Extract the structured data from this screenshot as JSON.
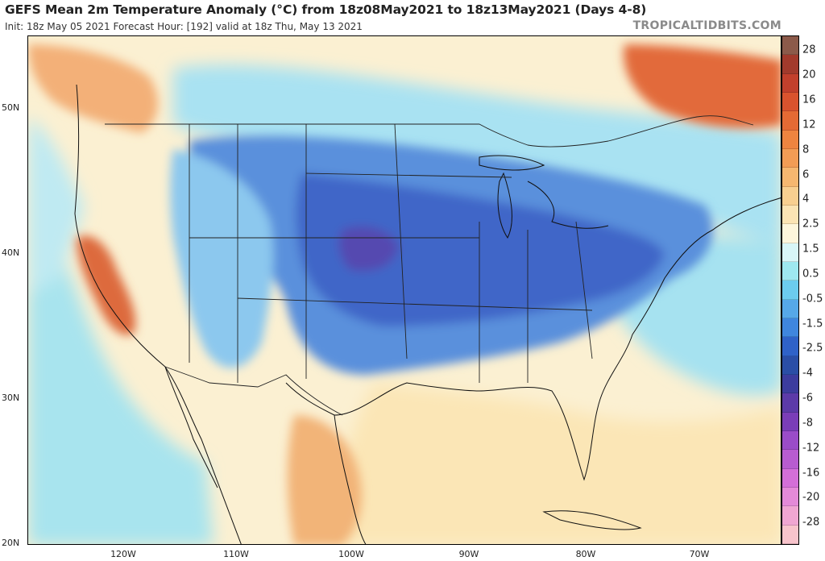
{
  "header": {
    "title": "GEFS Mean 2m Temperature Anomaly (°C) from 18z08May2021 to 18z13May2021 (Days 4-8)",
    "subtitle": "Init: 18z May 05 2021   Forecast Hour: [192]   valid at 18z Thu, May 13 2021",
    "brand": "TROPICALTIDBITS.COM"
  },
  "axes": {
    "lat_labels": [
      "50N",
      "40N",
      "30N",
      "20N"
    ],
    "lon_labels": [
      "120W",
      "110W",
      "100W",
      "90W",
      "80W",
      "70W"
    ]
  },
  "colorbar": {
    "labels": [
      "28",
      "20",
      "16",
      "12",
      "8",
      "6",
      "4",
      "2.5",
      "1.5",
      "0.5",
      "-0.5",
      "-1.5",
      "-2.5",
      "-4",
      "-6",
      "-8",
      "-12",
      "-16",
      "-20",
      "-28"
    ],
    "colors": [
      "#8c5a4a",
      "#a23a2c",
      "#c2402c",
      "#d9532e",
      "#e46a34",
      "#ee8440",
      "#f29c55",
      "#f6b770",
      "#f8cf90",
      "#fbe4b4",
      "#fdf6dc",
      "#d8f6f8",
      "#9ee8f0",
      "#6cccee",
      "#56a8e8",
      "#3f86de",
      "#2f62c8",
      "#2a4ea6",
      "#3c3c9e",
      "#5c3aa8",
      "#7a3db8",
      "#9a4cc8",
      "#b85cd0",
      "#d46fd8",
      "#e48ad8",
      "#f0a6d2",
      "#f8c4cc"
    ]
  },
  "colors": {
    "land_base": "#fbf3d8",
    "ocean_cold": "#a6e6f0",
    "ocean_warm": "#fbe7bd",
    "very_cold": "#3f5fc4",
    "cold": "#5a90dc",
    "cool": "#8ac6ee",
    "warm": "#f6c189",
    "hot": "#e06a3c",
    "very_hot": "#c8462c"
  }
}
